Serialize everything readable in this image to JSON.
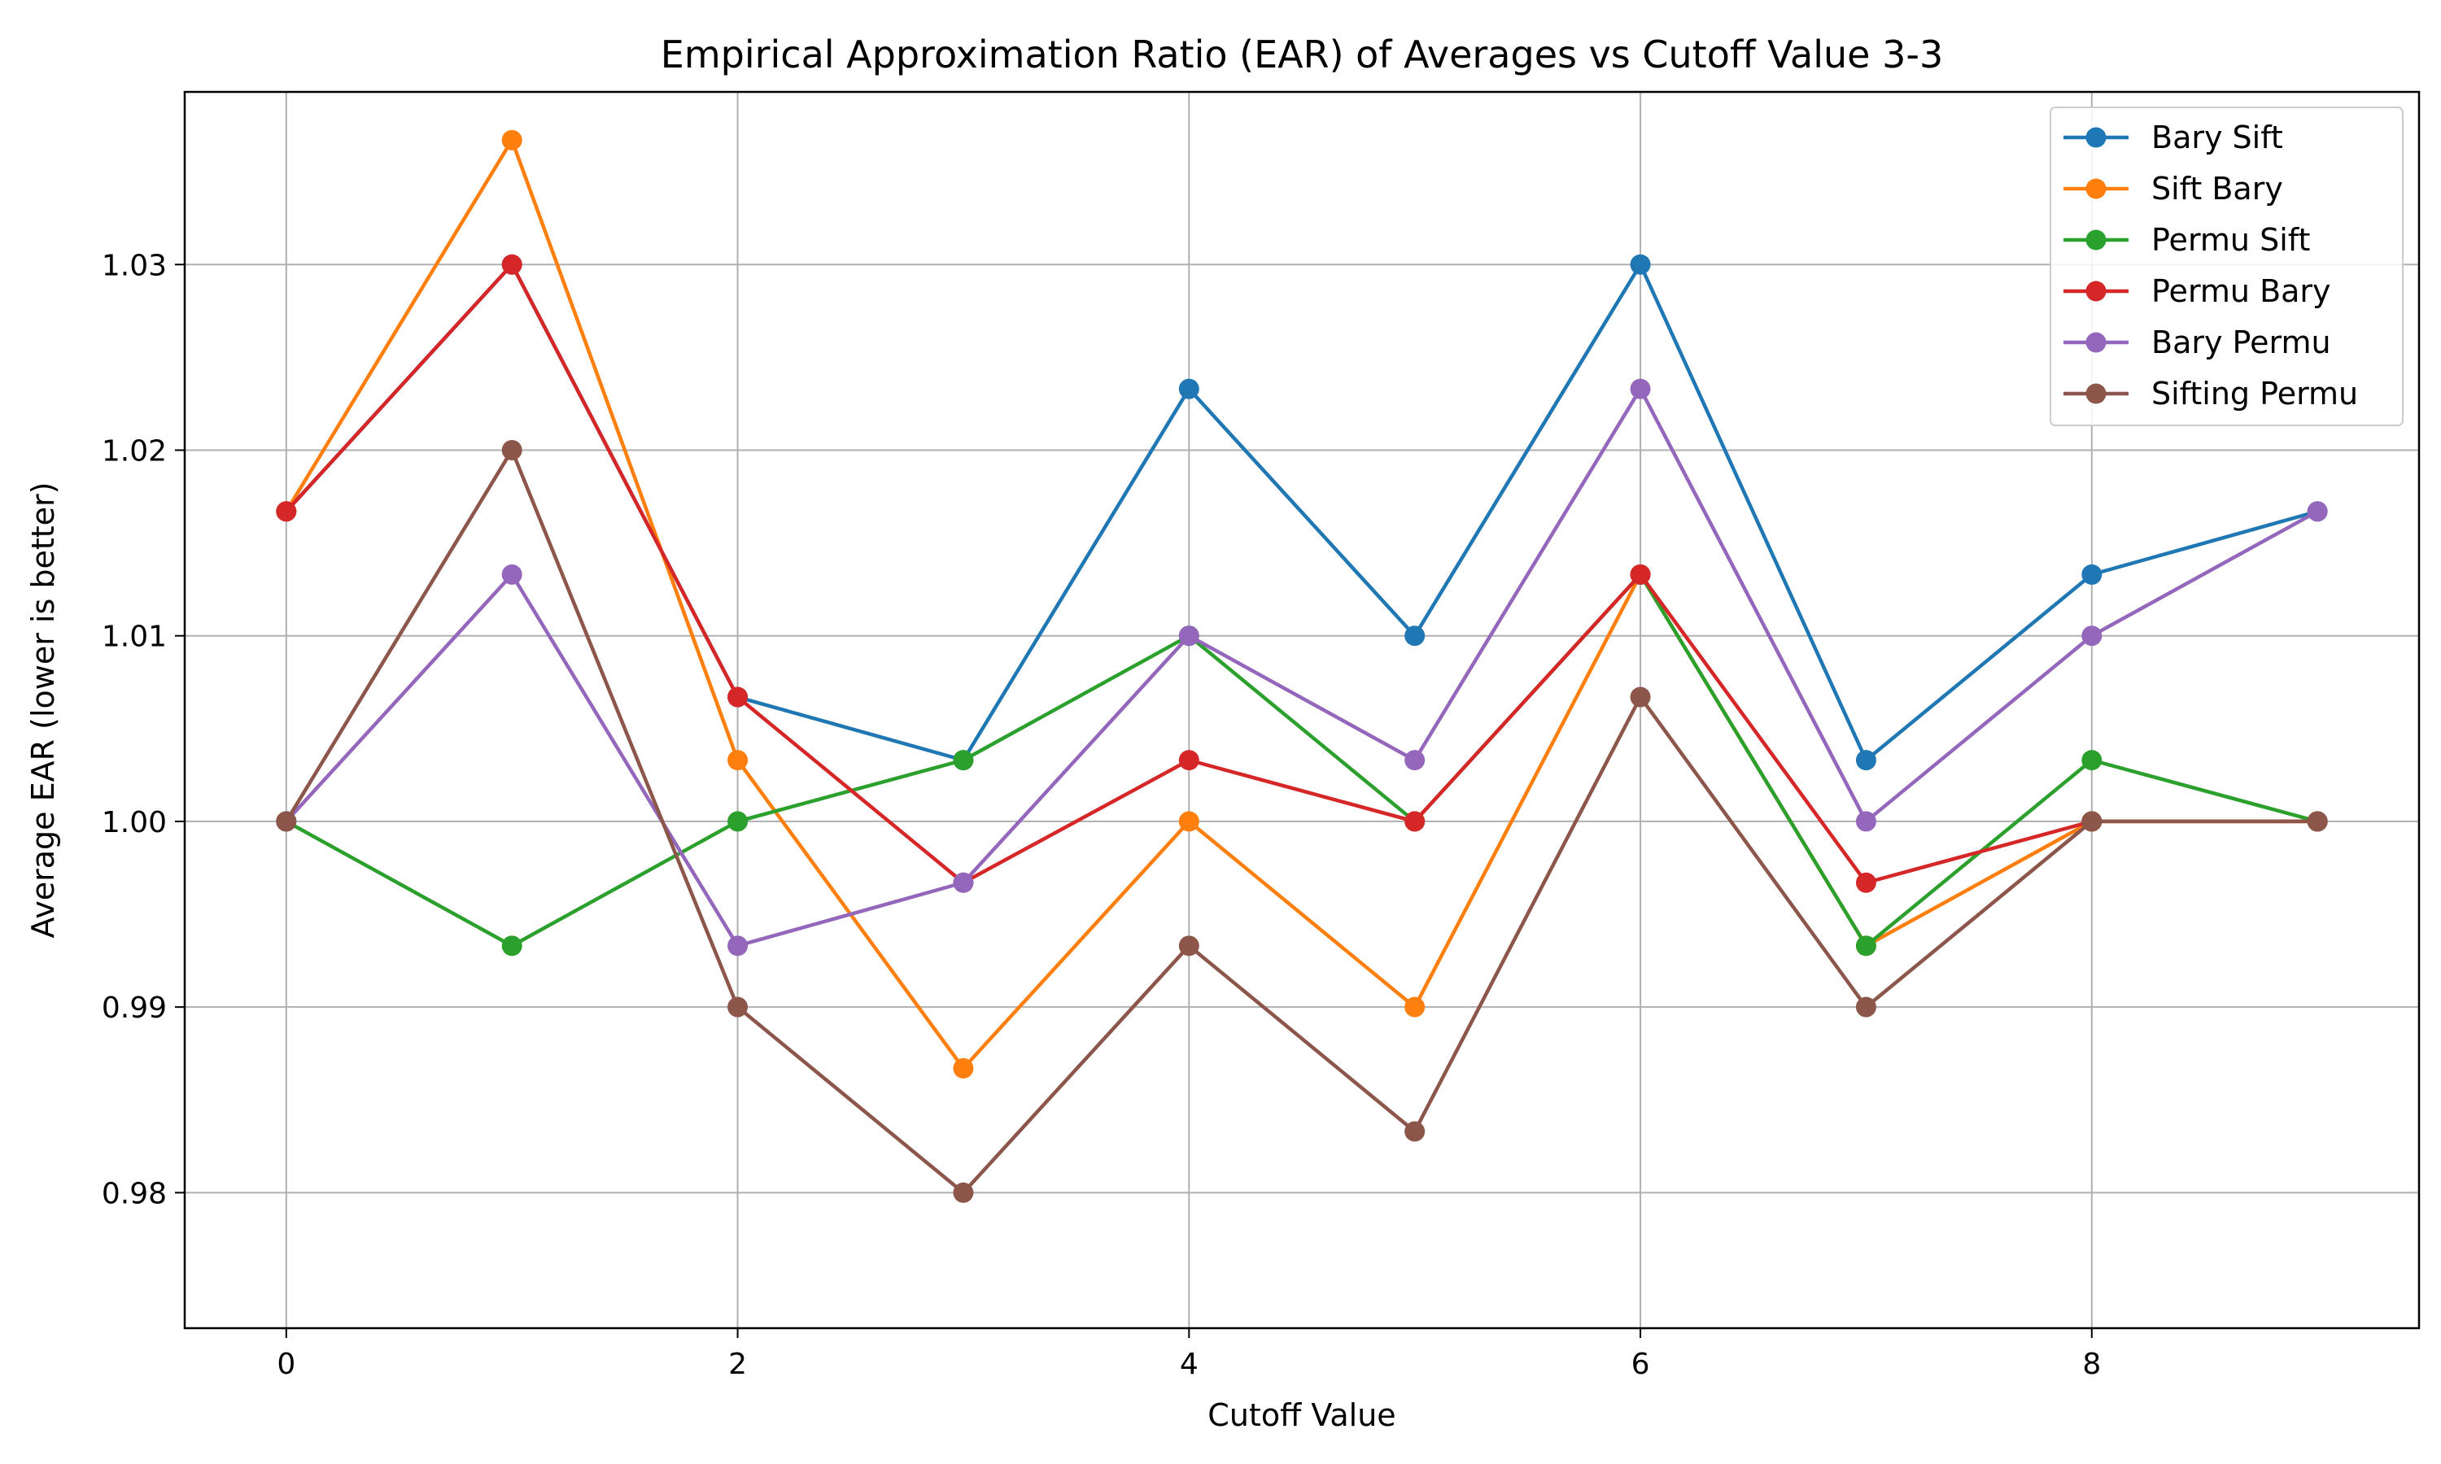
{
  "chart_data": {
    "type": "line",
    "title": "Empirical Approximation Ratio (EAR) of Averages vs Cutoff Value 3-3",
    "xlabel": "Cutoff Value",
    "ylabel": "Average EAR (lower is better)",
    "x": [
      0,
      1,
      2,
      3,
      4,
      5,
      6,
      7,
      8,
      9
    ],
    "xlim": [
      -0.45,
      9.45
    ],
    "ylim": [
      0.9727,
      1.0393
    ],
    "xticks": [
      0,
      2,
      4,
      6,
      8
    ],
    "xtick_labels": [
      "0",
      "2",
      "4",
      "6",
      "8"
    ],
    "yticks": [
      0.98,
      0.99,
      1.0,
      1.01,
      1.02,
      1.03
    ],
    "ytick_labels": [
      "0.98",
      "0.99",
      "1.00",
      "1.01",
      "1.02",
      "1.03"
    ],
    "grid": true,
    "legend_position": "top-right",
    "series": [
      {
        "name": "Bary Sift",
        "color": "#1f77b4",
        "values": [
          1.0167,
          1.03,
          1.0067,
          1.0033,
          1.0233,
          1.01,
          1.03,
          1.0033,
          1.0133,
          1.0167
        ]
      },
      {
        "name": "Sift Bary",
        "color": "#ff7f0e",
        "values": [
          1.0167,
          1.0367,
          1.0033,
          0.9867,
          1.0,
          0.99,
          1.0133,
          0.9933,
          1.0,
          1.0
        ]
      },
      {
        "name": "Permu Sift",
        "color": "#2ca02c",
        "values": [
          1.0,
          0.9933,
          1.0,
          1.0033,
          1.01,
          1.0,
          1.0133,
          0.9933,
          1.0033,
          1.0
        ]
      },
      {
        "name": "Permu Bary",
        "color": "#d62728",
        "values": [
          1.0167,
          1.03,
          1.0067,
          0.9967,
          1.0033,
          1.0,
          1.0133,
          0.9967,
          1.0,
          1.0
        ]
      },
      {
        "name": "Bary Permu",
        "color": "#9467bd",
        "values": [
          1.0,
          1.0133,
          0.9933,
          0.9967,
          1.01,
          1.0033,
          1.0233,
          1.0,
          1.01,
          1.0167
        ]
      },
      {
        "name": "Sifting Permu",
        "color": "#8c564b",
        "values": [
          1.0,
          1.02,
          0.99,
          0.98,
          0.9933,
          0.9833,
          1.0067,
          0.99,
          1.0,
          1.0
        ]
      }
    ]
  }
}
